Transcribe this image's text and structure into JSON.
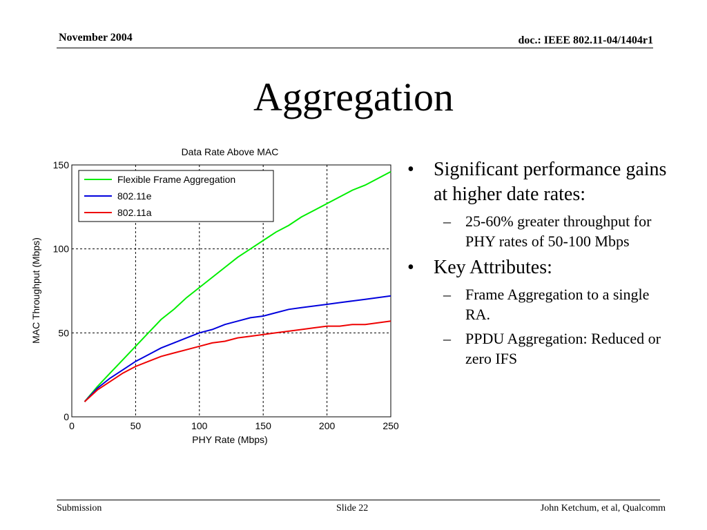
{
  "header": {
    "date": "November 2004",
    "doc": "doc.: IEEE 802.11-04/1404r1"
  },
  "slide_title": "Aggregation",
  "bullets": [
    {
      "text": "Significant performance gains at higher date rates:",
      "sub": [
        "25-60% greater throughput for PHY rates of 50-100 Mbps"
      ]
    },
    {
      "text": "Key Attributes:",
      "sub": [
        "Frame Aggregation to a single RA.",
        "PPDU Aggregation: Reduced or zero IFS"
      ]
    }
  ],
  "footer": {
    "left": "Submission",
    "center": "Slide 22",
    "right": "John Ketchum, et al, Qualcomm"
  },
  "chart_data": {
    "type": "line",
    "title": "Data Rate Above MAC",
    "xlabel": "PHY Rate (Mbps)",
    "ylabel": "MAC Throughput (Mbps)",
    "xlim": [
      0,
      250
    ],
    "ylim": [
      0,
      150
    ],
    "xticks": [
      0,
      50,
      100,
      150,
      200,
      250
    ],
    "yticks": [
      0,
      50,
      100,
      150
    ],
    "grid": true,
    "legend_position": "top-left",
    "x": [
      10,
      20,
      30,
      40,
      50,
      60,
      70,
      80,
      90,
      100,
      110,
      120,
      130,
      140,
      150,
      160,
      170,
      180,
      190,
      200,
      210,
      220,
      230,
      240,
      250
    ],
    "series": [
      {
        "name": "Flexible Frame Aggregation",
        "color": "#00ee00",
        "values": [
          9,
          18,
          26,
          34,
          42,
          50,
          58,
          64,
          71,
          77,
          83,
          89,
          95,
          100,
          105,
          110,
          114,
          119,
          123,
          127,
          131,
          135,
          138,
          142,
          146
        ]
      },
      {
        "name": "802.11e",
        "color": "#0000dd",
        "values": [
          9,
          17,
          23,
          28,
          33,
          37,
          41,
          44,
          47,
          50,
          52,
          55,
          57,
          59,
          60,
          62,
          64,
          65,
          66,
          67,
          68,
          69,
          70,
          71,
          72
        ]
      },
      {
        "name": "802.11a",
        "color": "#ee0000",
        "values": [
          9,
          16,
          21,
          26,
          30,
          33,
          36,
          38,
          40,
          42,
          44,
          45,
          47,
          48,
          49,
          50,
          51,
          52,
          53,
          54,
          54,
          55,
          55,
          56,
          57
        ]
      }
    ]
  }
}
